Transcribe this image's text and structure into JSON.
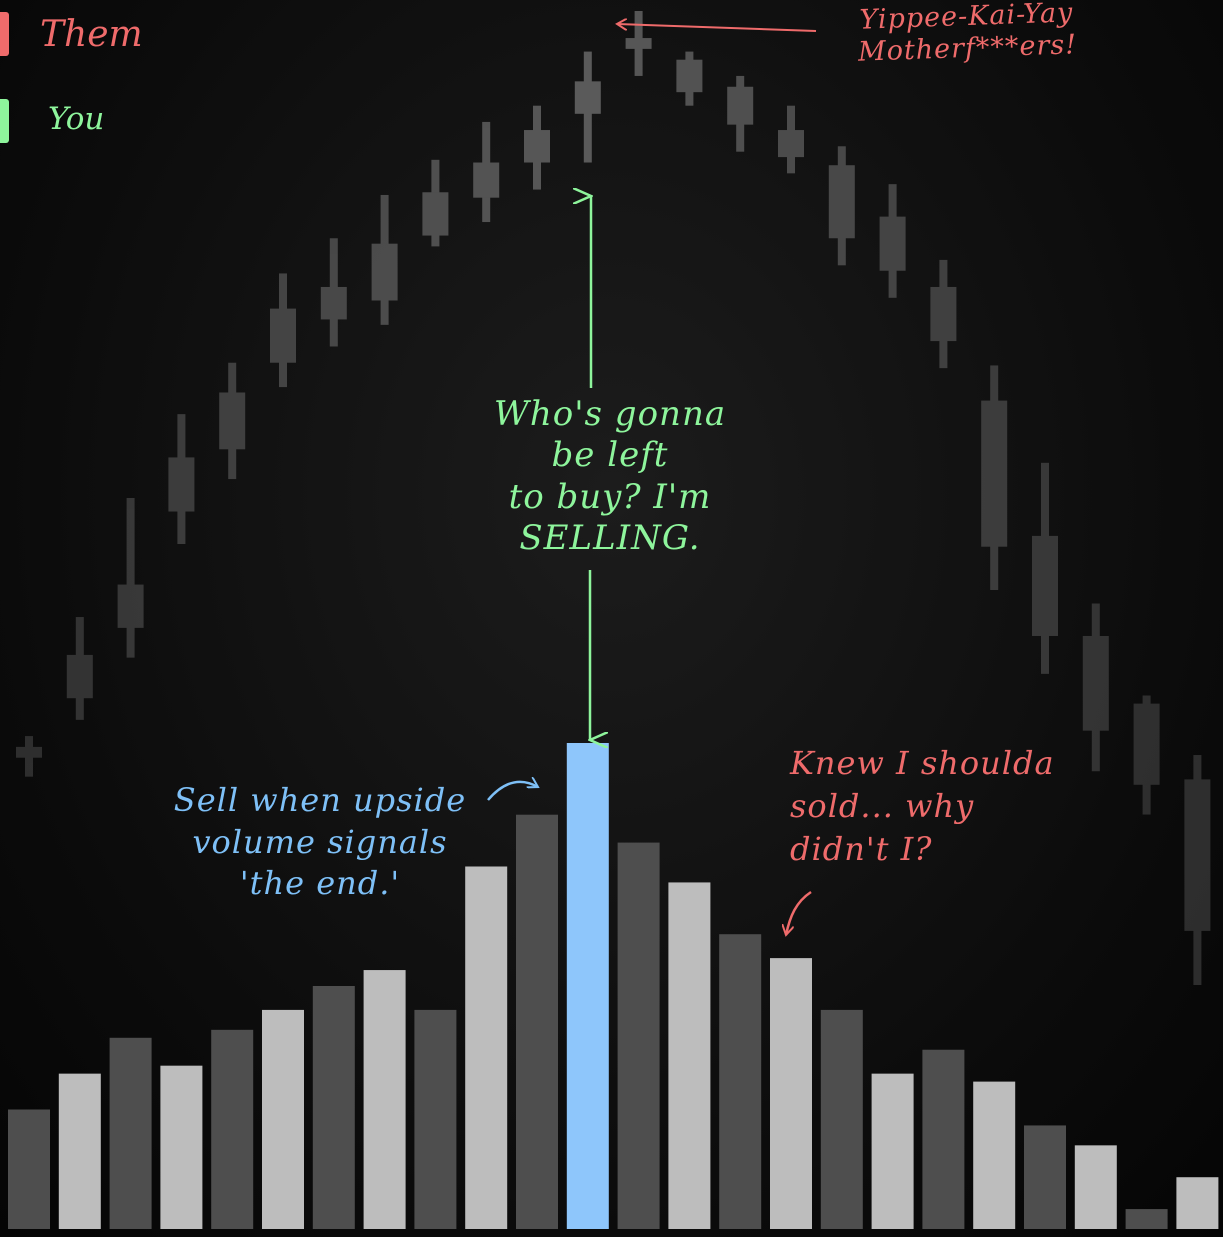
{
  "legend": [
    {
      "label": "Them",
      "color": "#ef6b6b"
    },
    {
      "label": "You",
      "color": "#8ef59c"
    }
  ],
  "annotations": {
    "top_right": "Yippee-Kai-Yay\nMotherf***ers!",
    "center": "Who's gonna\nbe left\nto buy? I'm\nSELLING.",
    "left_blue": "Sell when upside\nvolume signals\n'the end.'",
    "right_red": "Knew I shoulda\nsold... why\ndidn't I?"
  },
  "colors": {
    "them": "#ef6b6b",
    "you": "#8ef59c",
    "highlight": "#8ec6fb",
    "volume_light": "#bdbdbd",
    "volume_dark": "#4e4e4e",
    "candle_base": "#5a5a5a"
  },
  "chart_data": {
    "type": "bar",
    "title": "",
    "xlabel": "",
    "ylabel": "",
    "candles": [
      {
        "open": 14,
        "close": 10,
        "high": 18,
        "low": 3
      },
      {
        "open": 32,
        "close": 48,
        "high": 62,
        "low": 24
      },
      {
        "open": 58,
        "close": 74,
        "high": 106,
        "low": 47
      },
      {
        "open": 101,
        "close": 121,
        "high": 137,
        "low": 89
      },
      {
        "open": 124,
        "close": 145,
        "high": 156,
        "low": 113
      },
      {
        "open": 156,
        "close": 176,
        "high": 189,
        "low": 147
      },
      {
        "open": 172,
        "close": 184,
        "high": 202,
        "low": 162
      },
      {
        "open": 179,
        "close": 200,
        "high": 218,
        "low": 170
      },
      {
        "open": 203,
        "close": 219,
        "high": 231,
        "low": 199
      },
      {
        "open": 217,
        "close": 230,
        "high": 245,
        "low": 208
      },
      {
        "open": 230,
        "close": 242,
        "high": 251,
        "low": 220
      },
      {
        "open": 248,
        "close": 260,
        "high": 271,
        "low": 230
      },
      {
        "open": 272,
        "close": 276,
        "high": 286,
        "low": 262
      },
      {
        "open": 268,
        "close": 256,
        "high": 271,
        "low": 251
      },
      {
        "open": 258,
        "close": 244,
        "high": 262,
        "low": 234
      },
      {
        "open": 242,
        "close": 232,
        "high": 251,
        "low": 226
      },
      {
        "open": 229,
        "close": 202,
        "high": 236,
        "low": 192
      },
      {
        "open": 210,
        "close": 190,
        "high": 222,
        "low": 180
      },
      {
        "open": 184,
        "close": 164,
        "high": 194,
        "low": 154
      },
      {
        "open": 142,
        "close": 88,
        "high": 155,
        "low": 72
      },
      {
        "open": 92,
        "close": 55,
        "high": 119,
        "low": 41
      },
      {
        "open": 55,
        "close": 20,
        "high": 67,
        "low": 5
      },
      {
        "open": 30,
        "close": 0,
        "high": 33,
        "low": -11
      },
      {
        "open": 2,
        "close": -54,
        "high": 11,
        "low": -74
      }
    ],
    "volume": [
      30,
      39,
      48,
      41,
      50,
      55,
      61,
      65,
      55,
      91,
      104,
      122,
      97,
      87,
      74,
      68,
      55,
      39,
      45,
      37,
      26,
      21,
      5,
      13
    ],
    "volume_colors": [
      "dark",
      "light",
      "dark",
      "light",
      "dark",
      "light",
      "dark",
      "light",
      "dark",
      "light",
      "dark",
      "highlight",
      "dark",
      "light",
      "dark",
      "light",
      "dark",
      "light",
      "dark",
      "light",
      "dark",
      "light",
      "dark",
      "light"
    ],
    "highlight_index": 11
  }
}
